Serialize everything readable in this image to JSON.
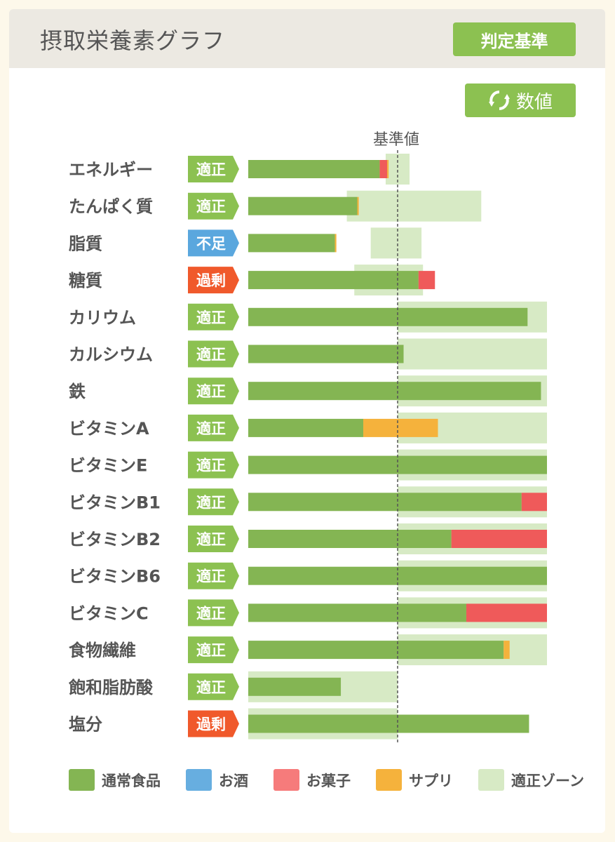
{
  "header": {
    "title": "摂取栄養素グラフ",
    "criteria_button": "判定基準",
    "value_toggle": "数値"
  },
  "colors": {
    "normal_food": "#84b553",
    "alcohol": "#67aee0",
    "sweets": "#ef5a5a",
    "supplement": "#f5b23c",
    "zone": "#d7eac5",
    "status_ok": "#8cc151",
    "status_low": "#5aa7de",
    "status_high": "#f0592b"
  },
  "chart_data": {
    "type": "bar",
    "stacked": true,
    "orientation": "horizontal",
    "reference_label": "基準値",
    "reference_value": 100,
    "xlim": [
      0,
      200
    ],
    "categories": [
      "エネルギー",
      "たんぱく質",
      "脂質",
      "糖質",
      "カリウム",
      "カルシウム",
      "鉄",
      "ビタミンA",
      "ビタミンE",
      "ビタミンB1",
      "ビタミンB2",
      "ビタミンB6",
      "ビタミンC",
      "食物繊維",
      "飽和脂肪酸",
      "塩分"
    ],
    "status": [
      "適正",
      "適正",
      "不足",
      "過剰",
      "適正",
      "適正",
      "適正",
      "適正",
      "適正",
      "適正",
      "適正",
      "適正",
      "適正",
      "適正",
      "適正",
      "過剰"
    ],
    "series": [
      {
        "name": "通常食品",
        "values": [
          88,
          73,
          58,
          114,
          187,
          104,
          196,
          77,
          200,
          183,
          136,
          200,
          146,
          171,
          62,
          188
        ]
      },
      {
        "name": "お酒",
        "values": [
          0,
          0,
          0,
          0,
          0,
          0,
          0,
          0,
          0,
          0,
          0,
          0,
          0,
          0,
          0,
          0
        ]
      },
      {
        "name": "お菓子",
        "values": [
          5,
          0,
          0,
          11,
          0,
          0,
          0,
          0,
          0,
          17,
          64,
          0,
          54,
          0,
          0,
          0
        ]
      },
      {
        "name": "サプリ",
        "values": [
          1,
          1,
          1,
          0,
          0,
          0,
          0,
          50,
          0,
          0,
          0,
          0,
          0,
          4,
          0,
          0
        ]
      }
    ],
    "zones": [
      [
        92,
        108
      ],
      [
        66,
        156
      ],
      [
        82,
        116
      ],
      [
        71,
        117
      ],
      [
        100,
        200
      ],
      [
        100,
        200
      ],
      [
        100,
        200
      ],
      [
        100,
        200
      ],
      [
        100,
        200
      ],
      [
        100,
        200
      ],
      [
        100,
        200
      ],
      [
        100,
        200
      ],
      [
        100,
        200
      ],
      [
        100,
        200
      ],
      [
        0,
        100
      ],
      [
        0,
        100
      ]
    ],
    "legend": [
      "通常食品",
      "お酒",
      "お菓子",
      "サプリ",
      "適正ゾーン"
    ],
    "legend_position": "bottom"
  }
}
